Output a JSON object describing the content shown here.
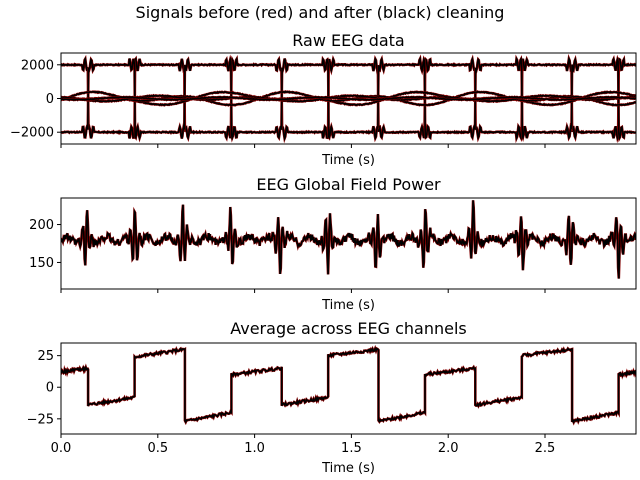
{
  "figure": {
    "suptitle": "Signals before (red) and after (black) cleaning"
  },
  "colors": {
    "before": "#8b0000",
    "after": "#000000"
  },
  "chart_data": [
    {
      "type": "line",
      "title": "Raw EEG data",
      "xlabel": "Time (s)",
      "ylabel": "",
      "xlim": [
        0,
        2.97
      ],
      "ylim": [
        -2700,
        2700
      ],
      "yticks": [
        2000,
        0,
        -2000
      ],
      "ytick_labels": [
        "2000",
        "0",
        "−2000"
      ],
      "xticks": [
        0,
        0.5,
        1.0,
        1.5,
        2.0,
        2.5
      ],
      "xtick_labels": [],
      "series_note_free": true,
      "square_wave": {
        "period": 1.0,
        "rise": 0.38,
        "fall": 0.14,
        "high": 2000,
        "low": -2000
      },
      "series": [
        {
          "kind": "square",
          "phase": 0,
          "sign": 1
        },
        {
          "kind": "square",
          "phase": 0,
          "sign": -1
        },
        {
          "kind": "drift",
          "amp": 300,
          "offset": 250
        },
        {
          "kind": "drift",
          "amp": 420,
          "offset": -180
        },
        {
          "kind": "drift",
          "amp": 200,
          "offset": 60
        },
        {
          "kind": "drift",
          "amp": 120,
          "offset": 0
        }
      ]
    },
    {
      "type": "line",
      "title": "EEG Global Field Power",
      "xlabel": "Time (s)",
      "ylabel": "",
      "xlim": [
        0,
        2.97
      ],
      "ylim": [
        115,
        235
      ],
      "yticks": [
        200,
        150
      ],
      "ytick_labels": [
        "200",
        "150"
      ],
      "xticks": [
        0,
        0.5,
        1.0,
        1.5,
        2.0,
        2.5
      ],
      "xtick_labels": [],
      "baseline": 180,
      "transients_at": [
        0.13,
        0.38,
        0.63,
        0.88,
        1.13,
        1.38,
        1.63,
        1.88,
        2.13,
        2.38,
        2.63,
        2.88
      ],
      "transient_range": [
        125,
        232
      ]
    },
    {
      "type": "line",
      "title": "Average across EEG channels",
      "xlabel": "Time (s)",
      "ylabel": "",
      "xlim": [
        0,
        2.97
      ],
      "ylim": [
        -37,
        35
      ],
      "yticks": [
        25,
        0,
        -25
      ],
      "ytick_labels": [
        "25",
        "0",
        "−25"
      ],
      "xticks": [
        0,
        0.5,
        1.0,
        1.5,
        2.0,
        2.5
      ],
      "xtick_labels": [
        "0.0",
        "0.5",
        "1.0",
        "1.5",
        "2.0",
        "2.5"
      ],
      "segments": [
        {
          "t0": 0.0,
          "t1": 0.14,
          "v0": 12,
          "v1": 15
        },
        {
          "t0": 0.14,
          "t1": 0.38,
          "v0": -14,
          "v1": -8
        },
        {
          "t0": 0.38,
          "t1": 0.64,
          "v0": 24,
          "v1": 30
        },
        {
          "t0": 0.64,
          "t1": 0.88,
          "v0": -27,
          "v1": -20
        },
        {
          "t0": 0.88,
          "t1": 1.14,
          "v0": 10,
          "v1": 15
        },
        {
          "t0": 1.14,
          "t1": 1.38,
          "v0": -14,
          "v1": -8
        },
        {
          "t0": 1.38,
          "t1": 1.64,
          "v0": 25,
          "v1": 30
        },
        {
          "t0": 1.64,
          "t1": 1.88,
          "v0": -27,
          "v1": -20
        },
        {
          "t0": 1.88,
          "t1": 2.14,
          "v0": 10,
          "v1": 15
        },
        {
          "t0": 2.14,
          "t1": 2.38,
          "v0": -14,
          "v1": -8
        },
        {
          "t0": 2.38,
          "t1": 2.64,
          "v0": 25,
          "v1": 30
        },
        {
          "t0": 2.64,
          "t1": 2.88,
          "v0": -27,
          "v1": -20
        },
        {
          "t0": 2.88,
          "t1": 2.97,
          "v0": 10,
          "v1": 12
        }
      ]
    }
  ]
}
